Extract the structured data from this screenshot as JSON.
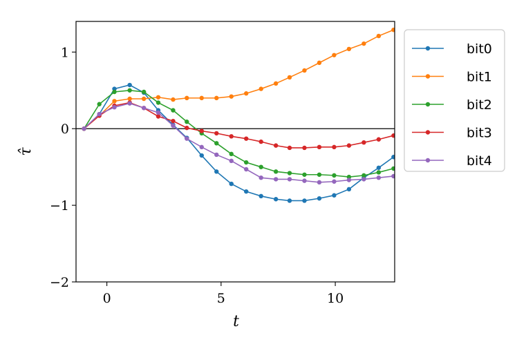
{
  "chart_data": {
    "type": "line",
    "xlabel": "t",
    "ylabel": "τ̂",
    "xlim": [
      -1.35,
      12.6
    ],
    "ylim": [
      -2,
      1.4
    ],
    "xticks": [
      0,
      5,
      10
    ],
    "xtick_labels": [
      "0",
      "5",
      "10"
    ],
    "yticks": [
      -2,
      -1,
      0,
      1
    ],
    "ytick_labels": [
      "−2",
      "−1",
      "0",
      "1"
    ],
    "zero_line": true,
    "grid": false,
    "legend_position": "outside-right-top",
    "x": [
      -1.0,
      -0.33,
      0.33,
      1.0,
      1.62,
      2.25,
      2.9,
      3.5,
      4.15,
      4.8,
      5.45,
      6.1,
      6.75,
      7.4,
      8.0,
      8.65,
      9.3,
      9.95,
      10.6,
      11.25,
      11.9,
      12.55
    ],
    "series": [
      {
        "name": "bit0",
        "color": "#1f77b4",
        "values": [
          0.0,
          0.19,
          0.52,
          0.57,
          0.47,
          0.24,
          0.05,
          -0.12,
          -0.35,
          -0.56,
          -0.72,
          -0.82,
          -0.88,
          -0.92,
          -0.94,
          -0.94,
          -0.91,
          -0.87,
          -0.79,
          -0.64,
          -0.51,
          -0.37
        ]
      },
      {
        "name": "bit1",
        "color": "#ff7f0e",
        "values": [
          0.0,
          0.17,
          0.36,
          0.39,
          0.39,
          0.41,
          0.38,
          0.4,
          0.4,
          0.4,
          0.42,
          0.46,
          0.52,
          0.59,
          0.67,
          0.76,
          0.86,
          0.96,
          1.04,
          1.11,
          1.21,
          1.29
        ]
      },
      {
        "name": "bit2",
        "color": "#2ca02c",
        "values": [
          0.0,
          0.32,
          0.48,
          0.5,
          0.48,
          0.34,
          0.24,
          0.09,
          -0.06,
          -0.19,
          -0.33,
          -0.44,
          -0.5,
          -0.56,
          -0.58,
          -0.6,
          -0.6,
          -0.61,
          -0.63,
          -0.61,
          -0.57,
          -0.52
        ]
      },
      {
        "name": "bit3",
        "color": "#d62728",
        "values": [
          0.0,
          0.17,
          0.3,
          0.34,
          0.27,
          0.16,
          0.1,
          0.01,
          -0.03,
          -0.06,
          -0.1,
          -0.13,
          -0.17,
          -0.22,
          -0.25,
          -0.25,
          -0.24,
          -0.24,
          -0.22,
          -0.18,
          -0.14,
          -0.09
        ]
      },
      {
        "name": "bit4",
        "color": "#9467bd",
        "values": [
          0.0,
          0.19,
          0.28,
          0.33,
          0.27,
          0.21,
          0.04,
          -0.13,
          -0.24,
          -0.34,
          -0.42,
          -0.53,
          -0.64,
          -0.66,
          -0.66,
          -0.68,
          -0.7,
          -0.69,
          -0.67,
          -0.66,
          -0.64,
          -0.62
        ]
      }
    ]
  }
}
